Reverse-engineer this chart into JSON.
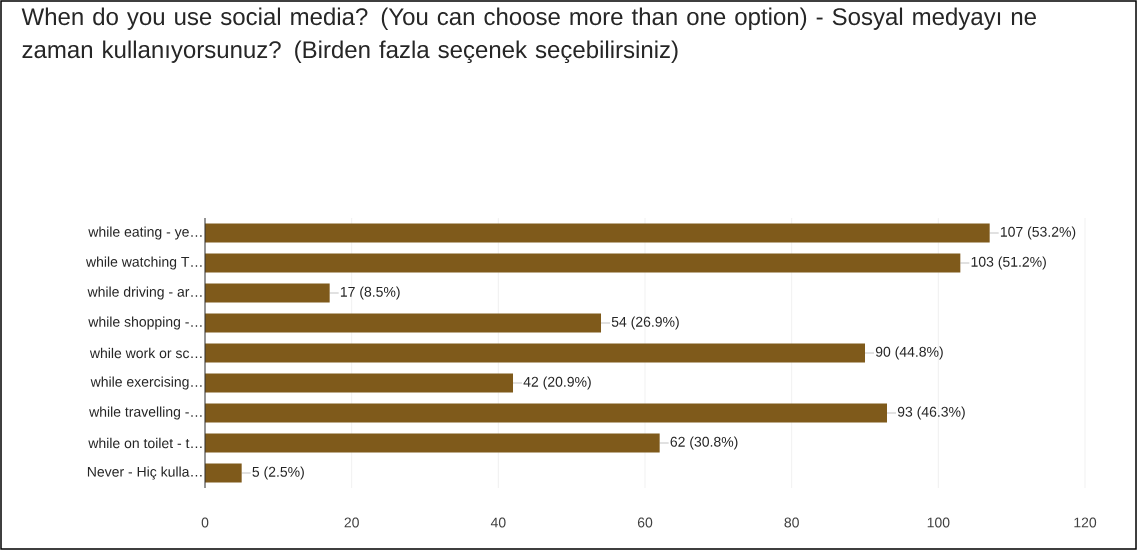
{
  "chart_data": {
    "type": "bar",
    "orientation": "horizontal",
    "title": "When do you use social media? (You can choose more than one option) - Sosyal medyayı ne zaman kullanıyorsunuz? (Birden fazla seçenek seçebilirsiniz)",
    "categories": [
      "while eating - ye…",
      "while watching T…",
      "while driving - ar…",
      "while shopping -…",
      "while work or sc…",
      "while exercising…",
      "while travelling -…",
      "while on toilet - t…",
      "Never - Hiç kulla…"
    ],
    "values": [
      107,
      103,
      17,
      54,
      90,
      42,
      93,
      62,
      5
    ],
    "value_labels": [
      "107 (53.2%)",
      "103 (51.2%)",
      "17 (8.5%)",
      "54 (26.9%)",
      "90 (44.8%)",
      "42 (20.9%)",
      "93 (46.3%)",
      "62 (30.8%)",
      "5 (2.5%)"
    ],
    "color": "#7f5a1b",
    "xlim": [
      0,
      120
    ],
    "xticks": [
      0,
      20,
      40,
      60,
      80,
      100,
      120
    ],
    "grid": "x"
  }
}
